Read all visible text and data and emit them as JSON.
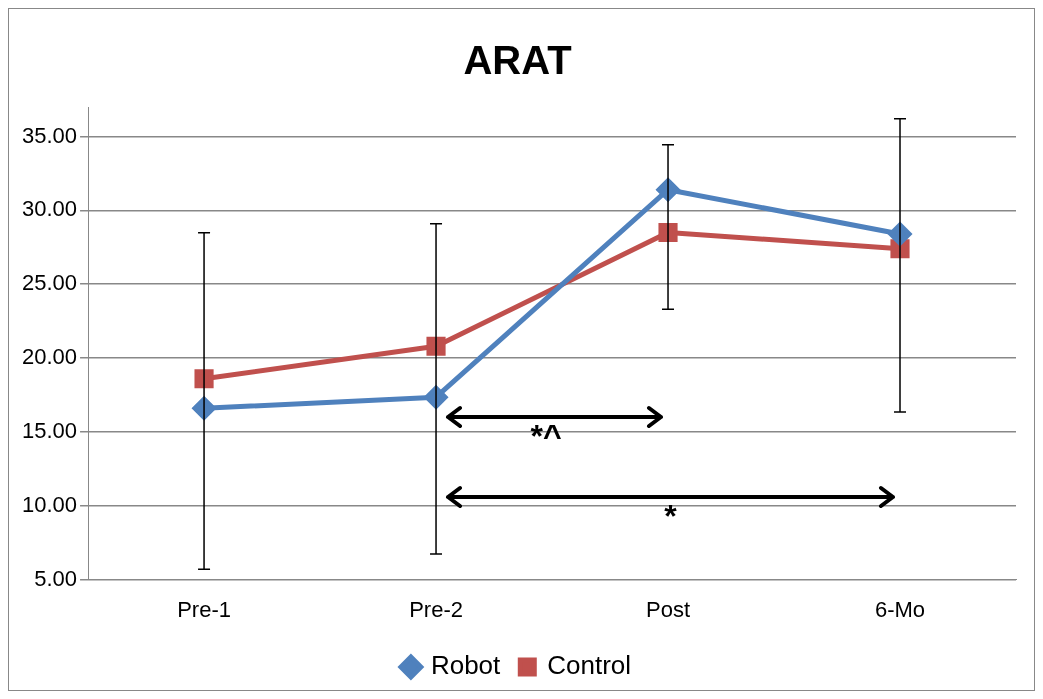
{
  "chart_data": {
    "type": "line",
    "title": "ARAT",
    "categories": [
      "Pre-1",
      "Pre-2",
      "Post",
      "6-Mo"
    ],
    "series": [
      {
        "name": "Robot",
        "color": "#4f81bd",
        "marker": "diamond",
        "values": [
          16.6,
          17.35,
          31.4,
          28.4
        ],
        "errors": [
          [
            5.7,
            28.48
          ],
          [
            6.73,
            29.1
          ],
          [
            23.3,
            34.45
          ],
          [
            16.35,
            36.2
          ]
        ]
      },
      {
        "name": "Control",
        "color": "#c0504d",
        "marker": "square",
        "values": [
          18.6,
          20.8,
          28.5,
          27.4
        ]
      }
    ],
    "ylim": [
      5,
      37
    ],
    "yticks": [
      {
        "value": 5,
        "label": "5.00"
      },
      {
        "value": 10,
        "label": "10.00"
      },
      {
        "value": 15,
        "label": "15.00"
      },
      {
        "value": 20,
        "label": "20.00"
      },
      {
        "value": 25,
        "label": "25.00"
      },
      {
        "value": 30,
        "label": "30.00"
      },
      {
        "value": 35,
        "label": "35.00"
      }
    ],
    "grid": "y",
    "legend": "bottom",
    "line_style": "solid",
    "annotations": [
      "*^",
      "*"
    ]
  }
}
